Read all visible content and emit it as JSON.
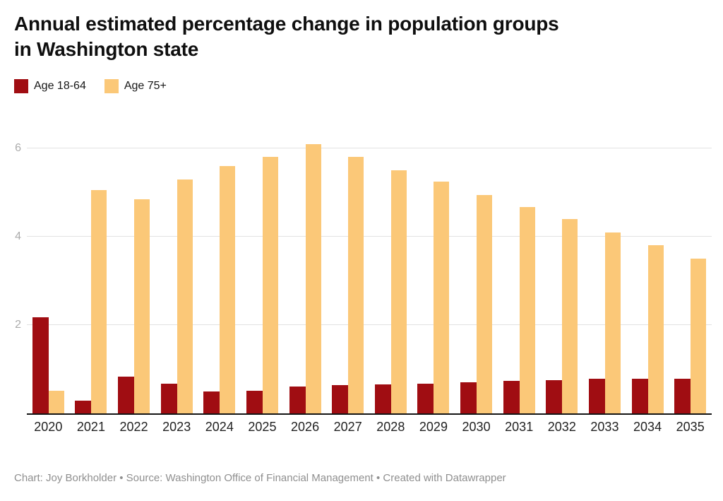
{
  "header": {
    "title_line1": "Annual estimated percentage change in population groups",
    "title_line2": "in Washington state"
  },
  "legend": [
    {
      "label": "Age 18-64",
      "color": "#a00d12"
    },
    {
      "label": "Age 75+",
      "color": "#fbc878"
    }
  ],
  "footer": {
    "credit": "Chart: Joy Borkholder • Source: Washington Office of Financial Management • Created with Datawrapper"
  },
  "colors": {
    "age_18_64": "#a00d12",
    "age_75_plus": "#fbc878",
    "gridline": "#e2e2e2",
    "baseline": "#141414",
    "ytick_text": "#ababab",
    "xlabel_text": "#222222",
    "footer_text": "#8f8f8f"
  },
  "chart_data": {
    "type": "bar",
    "title": "Annual estimated percentage change in population groups in Washington state",
    "categories": [
      "2020",
      "2021",
      "2022",
      "2023",
      "2024",
      "2025",
      "2026",
      "2027",
      "2028",
      "2029",
      "2030",
      "2031",
      "2032",
      "2033",
      "2034",
      "2035"
    ],
    "series": [
      {
        "name": "Age 18-64",
        "color": "#a00d12",
        "values": [
          2.17,
          0.29,
          0.83,
          0.67,
          0.49,
          0.52,
          0.61,
          0.64,
          0.66,
          0.68,
          0.71,
          0.73,
          0.76,
          0.78,
          0.78,
          0.78
        ]
      },
      {
        "name": "Age 75+",
        "color": "#fbc878",
        "values": [
          0.52,
          5.05,
          4.85,
          5.3,
          5.6,
          5.8,
          6.1,
          5.8,
          5.5,
          5.25,
          4.95,
          4.67,
          4.4,
          4.1,
          3.8,
          3.5
        ]
      }
    ],
    "xlabel": "",
    "ylabel": "",
    "yticks": [
      2,
      4,
      6
    ],
    "ylim": [
      0,
      6.3
    ],
    "grid": true,
    "legend_position": "top-left"
  }
}
